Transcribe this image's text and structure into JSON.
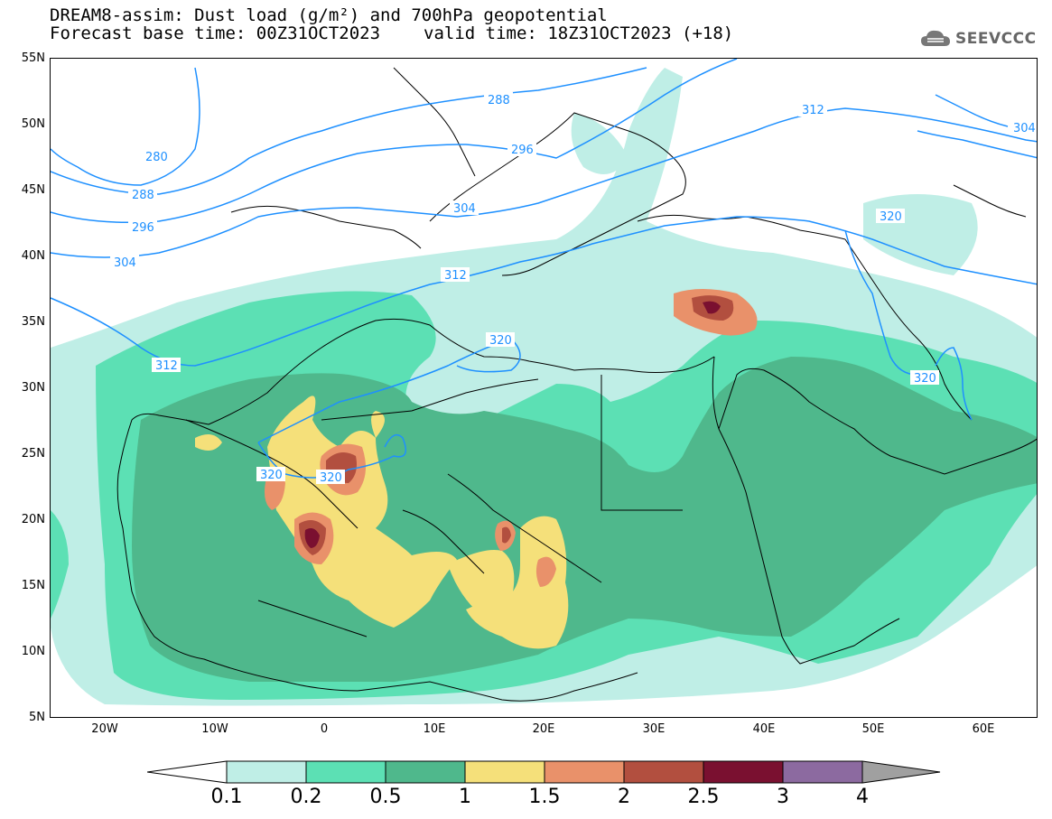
{
  "header": {
    "title_line1": "DREAM8-assim: Dust load (g/m²) and 700hPa geopotential",
    "base_time": "Forecast base time: 00Z31OCT2023",
    "valid_time": "valid time: 18Z31OCT2023 (+18)"
  },
  "logo": {
    "text": "SEEVCCC",
    "icon": "cloud-icon"
  },
  "axes": {
    "lat_labels": [
      "55N",
      "50N",
      "45N",
      "40N",
      "35N",
      "30N",
      "25N",
      "20N",
      "15N",
      "10N",
      "5N"
    ],
    "lon_labels": [
      "20W",
      "10W",
      "0",
      "10E",
      "20E",
      "30E",
      "40E",
      "50E",
      "60E"
    ],
    "lat_range": [
      5,
      55
    ],
    "lon_range": [
      -25,
      65
    ]
  },
  "contour_labels": {
    "geopotential": [
      "280",
      "288",
      "288",
      "296",
      "296",
      "304",
      "304",
      "304",
      "312",
      "312",
      "312",
      "320",
      "320",
      "320",
      "320",
      "320"
    ]
  },
  "colorbar": {
    "labels": [
      "0.1",
      "0.2",
      "0.5",
      "1",
      "1.5",
      "2",
      "2.5",
      "3",
      "4"
    ],
    "colors": [
      "#bfeee6",
      "#5ce0b4",
      "#4fb88c",
      "#f5e07a",
      "#e9916a",
      "#b24f3f",
      "#7a1030",
      "#8c6aa0",
      "#a0a0a0"
    ]
  }
}
